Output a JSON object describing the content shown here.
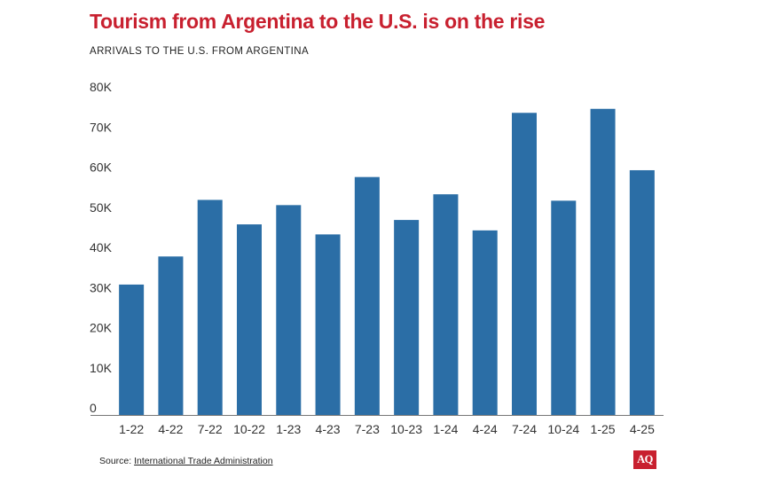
{
  "chart_data": {
    "type": "bar",
    "title": "Tourism from Argentina to the U.S. is on the rise",
    "subtitle": "ARRIVALS TO THE U.S. FROM ARGENTINA",
    "categories": [
      "1-22",
      "4-22",
      "7-22",
      "10-22",
      "1-23",
      "4-23",
      "7-23",
      "10-23",
      "1-24",
      "4-24",
      "7-24",
      "10-24",
      "1-25",
      "4-25"
    ],
    "values": [
      32500,
      39500,
      53600,
      47500,
      52300,
      45000,
      59300,
      48600,
      55000,
      46000,
      75300,
      53400,
      76300,
      61000
    ],
    "ylim": [
      0,
      80000
    ],
    "yticks": [
      0,
      10000,
      20000,
      30000,
      40000,
      50000,
      60000,
      70000,
      80000
    ],
    "ytick_labels": [
      "0",
      "10K",
      "20K",
      "30K",
      "40K",
      "50K",
      "60K",
      "70K",
      "80K"
    ],
    "xlabel": "",
    "ylabel": "",
    "grid": false,
    "bar_color": "#2b6ea6"
  },
  "source": {
    "prefix": "Source: ",
    "link_text": "International Trade Administration"
  },
  "logo_text": "AQ",
  "colors": {
    "title": "#c8202f",
    "logo_bg": "#c8202f",
    "axis": "#777777",
    "tick_text": "#333333"
  }
}
